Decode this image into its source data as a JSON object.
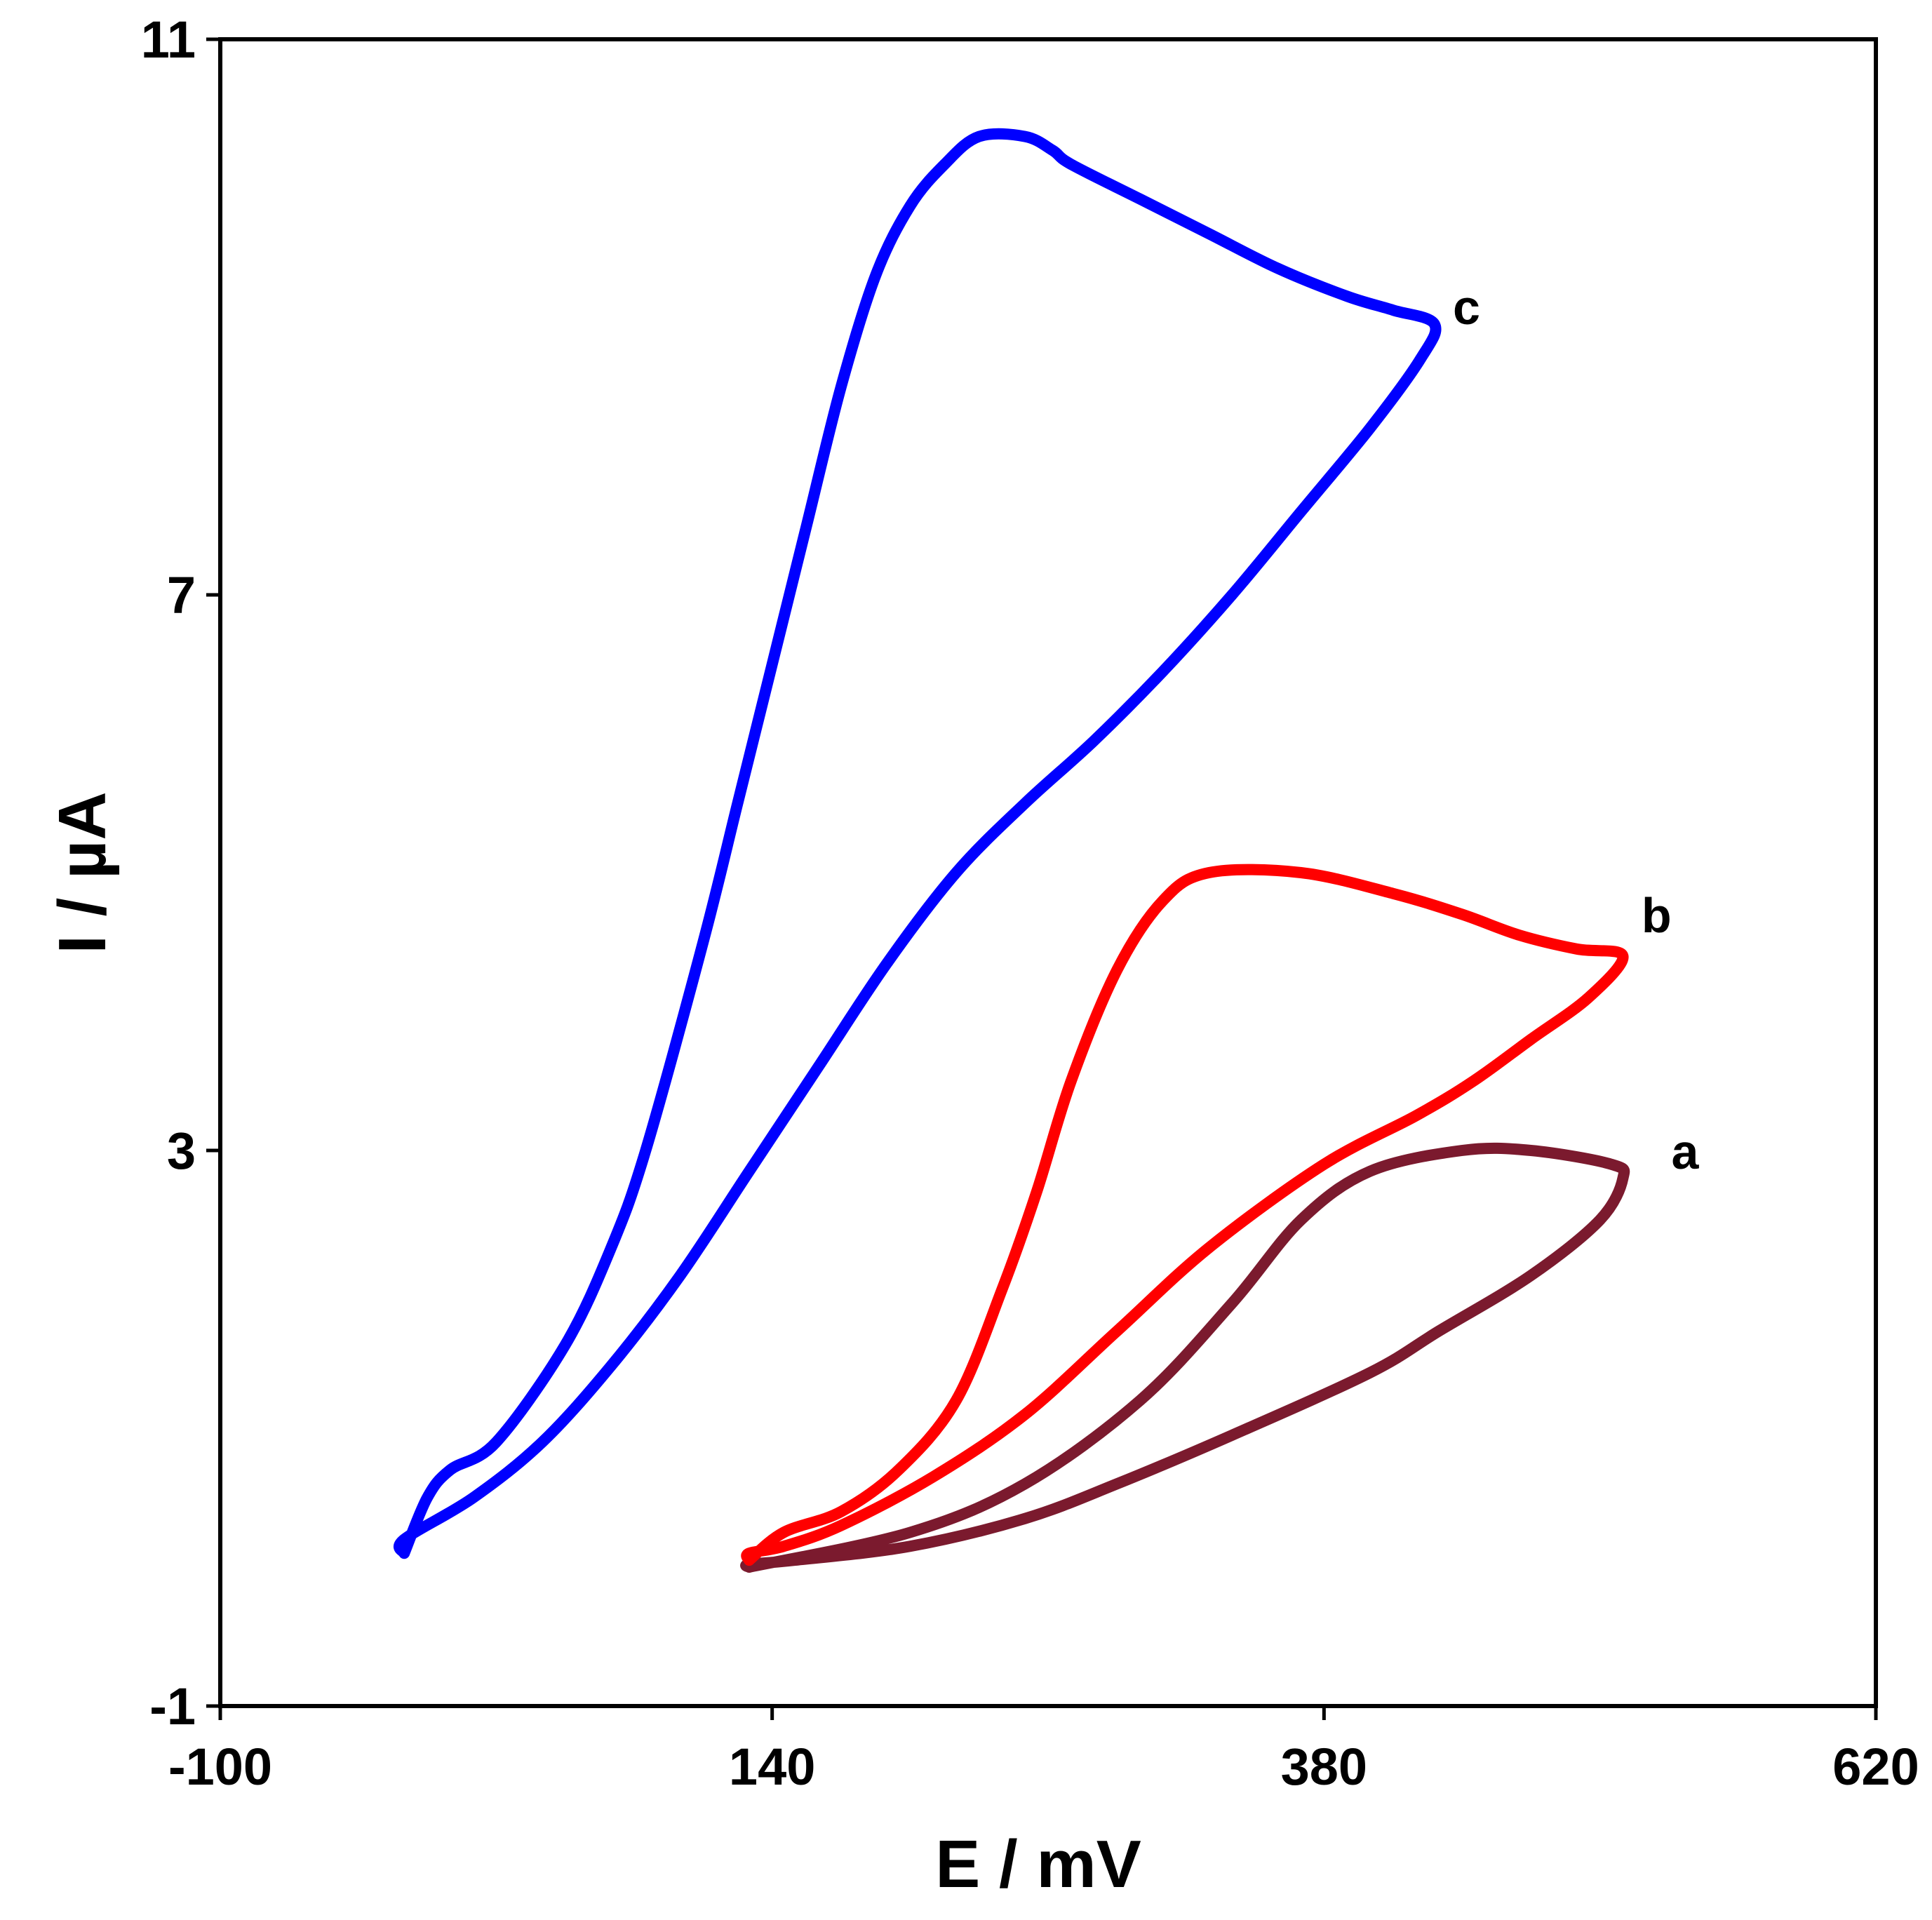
{
  "chart_data": {
    "type": "line",
    "xlabel": "E / mV",
    "ylabel": "I / µA",
    "xlim": [
      -100,
      620
    ],
    "ylim": [
      -1,
      11
    ],
    "xticks": [
      "-100",
      "140",
      "380",
      "620"
    ],
    "yticks": [
      "11",
      "7",
      "3",
      "-1"
    ],
    "grid": false,
    "legend": "none",
    "series": [
      {
        "label": "a",
        "color": "#7b1a2e",
        "points": [
          [
            130,
            0.0
          ],
          [
            200,
            0.25
          ],
          [
            250,
            0.6
          ],
          [
            300,
            1.2
          ],
          [
            340,
            1.9
          ],
          [
            370,
            2.5
          ],
          [
            400,
            2.85
          ],
          [
            440,
            3.0
          ],
          [
            470,
            3.0
          ],
          [
            505,
            2.9
          ],
          [
            510,
            2.8
          ],
          [
            500,
            2.5
          ],
          [
            470,
            2.1
          ],
          [
            430,
            1.7
          ],
          [
            400,
            1.4
          ],
          [
            340,
            0.95
          ],
          [
            290,
            0.6
          ],
          [
            250,
            0.35
          ],
          [
            200,
            0.15
          ],
          [
            150,
            0.05
          ],
          [
            130,
            0.02
          ]
        ]
      },
      {
        "label": "b",
        "color": "#ff0000",
        "points": [
          [
            130,
            0.05
          ],
          [
            145,
            0.25
          ],
          [
            170,
            0.4
          ],
          [
            195,
            0.7
          ],
          [
            220,
            1.2
          ],
          [
            240,
            2.0
          ],
          [
            255,
            2.7
          ],
          [
            270,
            3.5
          ],
          [
            290,
            4.3
          ],
          [
            310,
            4.8
          ],
          [
            330,
            5.0
          ],
          [
            370,
            5.0
          ],
          [
            410,
            4.85
          ],
          [
            440,
            4.7
          ],
          [
            465,
            4.55
          ],
          [
            490,
            4.45
          ],
          [
            510,
            4.4
          ],
          [
            495,
            4.1
          ],
          [
            470,
            3.8
          ],
          [
            445,
            3.5
          ],
          [
            420,
            3.25
          ],
          [
            380,
            2.9
          ],
          [
            330,
            2.3
          ],
          [
            290,
            1.7
          ],
          [
            250,
            1.1
          ],
          [
            210,
            0.65
          ],
          [
            170,
            0.3
          ],
          [
            145,
            0.15
          ],
          [
            130,
            0.1
          ]
        ]
      },
      {
        "label": "c",
        "color": "#0000ff",
        "points": [
          [
            -20,
            0.1
          ],
          [
            -10,
            0.5
          ],
          [
            0,
            0.7
          ],
          [
            20,
            0.9
          ],
          [
            50,
            1.6
          ],
          [
            70,
            2.3
          ],
          [
            85,
            3.0
          ],
          [
            110,
            4.5
          ],
          [
            125,
            5.5
          ],
          [
            140,
            6.5
          ],
          [
            155,
            7.5
          ],
          [
            170,
            8.5
          ],
          [
            185,
            9.3
          ],
          [
            200,
            9.8
          ],
          [
            215,
            10.1
          ],
          [
            230,
            10.3
          ],
          [
            250,
            10.3
          ],
          [
            262,
            10.2
          ],
          [
            270,
            10.1
          ],
          [
            300,
            9.85
          ],
          [
            330,
            9.6
          ],
          [
            360,
            9.35
          ],
          [
            390,
            9.15
          ],
          [
            410,
            9.05
          ],
          [
            428,
            8.95
          ],
          [
            422,
            8.7
          ],
          [
            400,
            8.2
          ],
          [
            370,
            7.6
          ],
          [
            340,
            7.0
          ],
          [
            310,
            6.45
          ],
          [
            280,
            5.95
          ],
          [
            250,
            5.5
          ],
          [
            220,
            5.0
          ],
          [
            190,
            4.35
          ],
          [
            160,
            3.6
          ],
          [
            130,
            2.85
          ],
          [
            100,
            2.1
          ],
          [
            70,
            1.45
          ],
          [
            40,
            0.9
          ],
          [
            10,
            0.5
          ],
          [
            -20,
            0.2
          ]
        ]
      }
    ],
    "annotations": [
      {
        "text": "c",
        "x": 433,
        "y": 9.0
      },
      {
        "text": "b",
        "x": 515,
        "y": 4.62
      },
      {
        "text": "a",
        "x": 528,
        "y": 2.92
      }
    ]
  }
}
